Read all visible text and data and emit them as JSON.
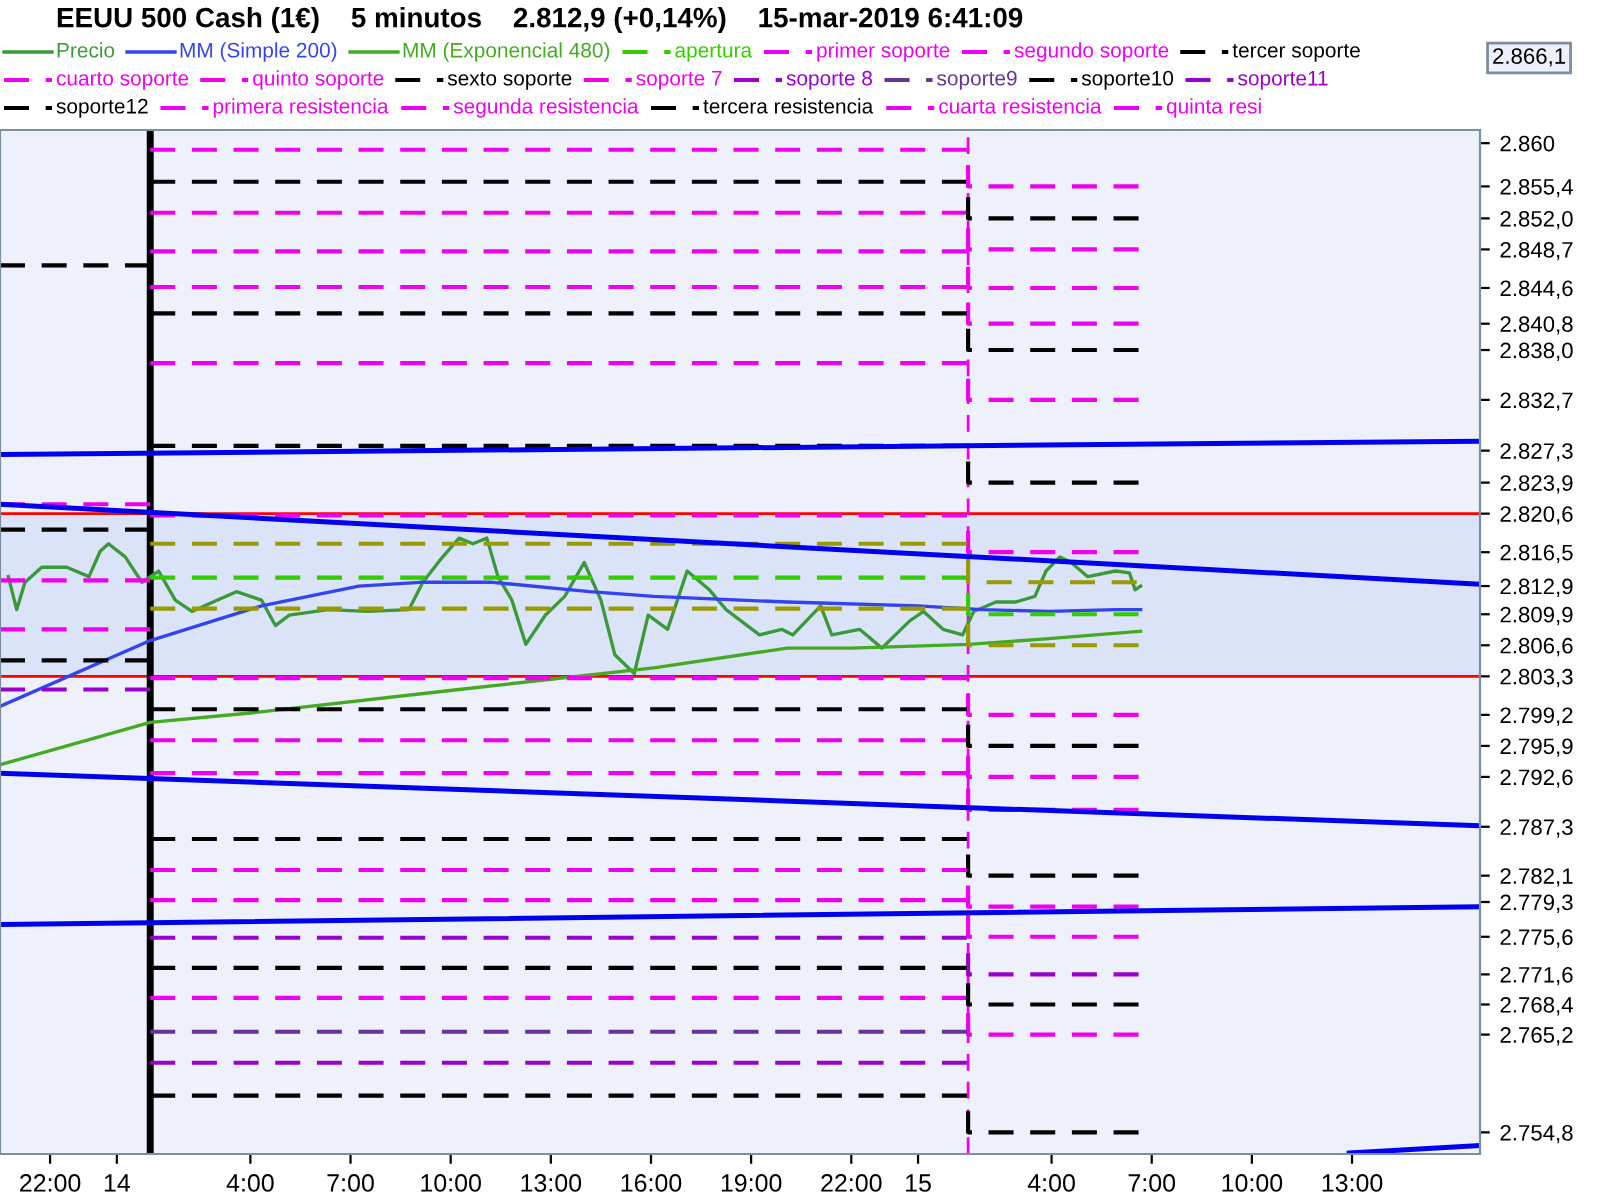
{
  "chart_data": {
    "type": "line",
    "title": "EEUU 500 Cash (1€)    5 minutos    2.812,9 (+0,14%)    15-mar-2019 6:41:09",
    "annotations": [
      "2.866,1"
    ],
    "xlim": [
      "2019-03-13T20:30",
      "2019-03-15T16:50"
    ],
    "xticks": [
      {
        "value": "2019-03-13T22:00",
        "label": "22:00"
      },
      {
        "value": "2019-03-14T00:00",
        "label": "14"
      },
      {
        "value": "2019-03-14T04:00",
        "label": "4:00"
      },
      {
        "value": "2019-03-14T07:00",
        "label": "7:00"
      },
      {
        "value": "2019-03-14T10:00",
        "label": "10:00"
      },
      {
        "value": "2019-03-14T13:00",
        "label": "13:00"
      },
      {
        "value": "2019-03-14T16:00",
        "label": "16:00"
      },
      {
        "value": "2019-03-14T19:00",
        "label": "19:00"
      },
      {
        "value": "2019-03-14T22:00",
        "label": "22:00"
      },
      {
        "value": "2019-03-15T00:00",
        "label": "15"
      },
      {
        "value": "2019-03-15T04:00",
        "label": "4:00"
      },
      {
        "value": "2019-03-15T07:00",
        "label": "7:00"
      },
      {
        "value": "2019-03-15T10:00",
        "label": "10:00"
      },
      {
        "value": "2019-03-15T13:00",
        "label": "13:00"
      }
    ],
    "ylim": [
      2752.5,
      2861.4
    ],
    "yticks": [
      {
        "value": 2860,
        "label": "2.860"
      },
      {
        "value": 2855.4,
        "label": "2.855,4"
      },
      {
        "value": 2852.0,
        "label": "2.852,0"
      },
      {
        "value": 2848.7,
        "label": "2.848,7"
      },
      {
        "value": 2844.6,
        "label": "2.844,6"
      },
      {
        "value": 2840.8,
        "label": "2.840,8"
      },
      {
        "value": 2838.0,
        "label": "2.838,0"
      },
      {
        "value": 2832.7,
        "label": "2.832,7"
      },
      {
        "value": 2827.3,
        "label": "2.827,3"
      },
      {
        "value": 2823.9,
        "label": "2.823,9"
      },
      {
        "value": 2820.6,
        "label": "2.820,6"
      },
      {
        "value": 2816.5,
        "label": "2.816,5"
      },
      {
        "value": 2812.9,
        "label": "2.812,9"
      },
      {
        "value": 2809.9,
        "label": "2.809,9"
      },
      {
        "value": 2806.6,
        "label": "2.806,6"
      },
      {
        "value": 2803.3,
        "label": "2.803,3"
      },
      {
        "value": 2799.2,
        "label": "2.799,2"
      },
      {
        "value": 2795.9,
        "label": "2.795,9"
      },
      {
        "value": 2792.6,
        "label": "2.792,6"
      },
      {
        "value": 2787.3,
        "label": "2.787,3"
      },
      {
        "value": 2782.1,
        "label": "2.782,1"
      },
      {
        "value": 2779.3,
        "label": "2.779,3"
      },
      {
        "value": 2775.6,
        "label": "2.775,6"
      },
      {
        "value": 2771.6,
        "label": "2.771,6"
      },
      {
        "value": 2768.4,
        "label": "2.768,4"
      },
      {
        "value": 2765.2,
        "label": "2.765,2"
      },
      {
        "value": 2754.8,
        "label": "2.754,8"
      }
    ],
    "grid": false,
    "legend": "top",
    "bands": [
      {
        "axis": "y",
        "from": 2803.3,
        "to": 2820.6,
        "color": "#dbe3f8"
      }
    ],
    "ref_lines": [
      {
        "axis": "y",
        "value": 2820.6,
        "color": "#ff0000",
        "line_style": "solid"
      },
      {
        "axis": "y",
        "value": 2803.3,
        "color": "#ff0000",
        "line_style": "solid"
      },
      {
        "axis": "x",
        "value": "2019-03-14T01:00",
        "color": "#000000",
        "line_style": "solid"
      },
      {
        "axis": "x",
        "value": "2019-03-15T01:30",
        "color": "#ee00ee",
        "line_style": "dashed"
      }
    ],
    "series": [
      {
        "name": "Precio",
        "color": "#3a9a3a",
        "line_style": "solid",
        "x": [
          "2019-03-13T20:45",
          "2019-03-13T21:00",
          "2019-03-13T21:15",
          "2019-03-13T21:45",
          "2019-03-13T22:30",
          "2019-03-13T23:10",
          "2019-03-13T23:30",
          "2019-03-13T23:45",
          "2019-03-14T00:15",
          "2019-03-14T00:45",
          "2019-03-14T01:15",
          "2019-03-14T01:45",
          "2019-03-14T02:15",
          "2019-03-14T03:00",
          "2019-03-14T03:35",
          "2019-03-14T04:20",
          "2019-03-14T04:45",
          "2019-03-14T05:10",
          "2019-03-14T06:20",
          "2019-03-14T07:30",
          "2019-03-14T08:45",
          "2019-03-14T09:10",
          "2019-03-14T09:40",
          "2019-03-14T10:15",
          "2019-03-14T10:40",
          "2019-03-14T11:05",
          "2019-03-14T11:25",
          "2019-03-14T11:50",
          "2019-03-14T12:15",
          "2019-03-14T12:50",
          "2019-03-14T13:25",
          "2019-03-14T14:00",
          "2019-03-14T14:30",
          "2019-03-14T14:55",
          "2019-03-14T15:30",
          "2019-03-14T15:55",
          "2019-03-14T16:30",
          "2019-03-14T17:05",
          "2019-03-14T17:45",
          "2019-03-14T18:15",
          "2019-03-14T19:15",
          "2019-03-14T19:55",
          "2019-03-14T20:15",
          "2019-03-14T21:05",
          "2019-03-14T21:25",
          "2019-03-14T22:15",
          "2019-03-14T22:55",
          "2019-03-14T23:45",
          "2019-03-15T00:10",
          "2019-03-15T00:45",
          "2019-03-15T01:20",
          "2019-03-15T01:40",
          "2019-03-15T02:20",
          "2019-03-15T02:55",
          "2019-03-15T03:30",
          "2019-03-15T03:50",
          "2019-03-15T04:15",
          "2019-03-15T04:35",
          "2019-03-15T05:05",
          "2019-03-15T05:55",
          "2019-03-15T06:20",
          "2019-03-15T06:30",
          "2019-03-15T06:40"
        ],
        "values": [
          2813.9,
          2810.4,
          2813.3,
          2814.9,
          2814.9,
          2813.9,
          2816.6,
          2817.4,
          2816.0,
          2813.3,
          2814.5,
          2811.4,
          2810.2,
          2811.4,
          2812.3,
          2811.4,
          2808.7,
          2809.8,
          2810.4,
          2810.2,
          2810.4,
          2813.3,
          2815.6,
          2818.0,
          2817.4,
          2818.0,
          2813.9,
          2811.4,
          2806.7,
          2809.8,
          2811.8,
          2815.4,
          2811.4,
          2805.6,
          2803.6,
          2809.8,
          2808.3,
          2814.5,
          2812.5,
          2810.4,
          2807.7,
          2808.3,
          2807.7,
          2810.8,
          2807.7,
          2808.3,
          2806.3,
          2809.2,
          2810.2,
          2808.3,
          2807.7,
          2810.2,
          2811.2,
          2811.2,
          2811.8,
          2814.5,
          2816.0,
          2815.4,
          2813.9,
          2814.5,
          2814.3,
          2812.5,
          2812.9
        ]
      },
      {
        "name": "MM (Simple 200)",
        "color": "#3344ee",
        "line_style": "solid",
        "x": [
          "2019-03-13T20:30",
          "2019-03-14T01:00",
          "2019-03-14T04:20",
          "2019-03-14T07:15",
          "2019-03-14T09:05",
          "2019-03-14T11:15",
          "2019-03-14T14:10",
          "2019-03-14T16:05",
          "2019-03-14T20:05",
          "2019-03-15T00:00",
          "2019-03-15T01:55",
          "2019-03-15T03:55",
          "2019-03-15T05:55",
          "2019-03-15T06:40"
        ],
        "values": [
          2800.1,
          2807.1,
          2810.8,
          2812.9,
          2813.3,
          2813.3,
          2812.3,
          2811.8,
          2811.2,
          2810.8,
          2810.4,
          2810.2,
          2810.4,
          2810.4
        ]
      },
      {
        "name": "MM (Exponencial 480)",
        "color": "#44aa22",
        "line_style": "solid",
        "x": [
          "2019-03-13T20:30",
          "2019-03-14T01:00",
          "2019-03-14T04:00",
          "2019-03-14T10:15",
          "2019-03-14T16:05",
          "2019-03-14T20:05",
          "2019-03-14T22:00",
          "2019-03-15T01:30",
          "2019-03-15T03:55",
          "2019-03-15T06:40"
        ],
        "values": [
          2793.9,
          2798.4,
          2799.4,
          2801.9,
          2804.2,
          2806.3,
          2806.3,
          2806.7,
          2807.3,
          2808.1
        ]
      },
      {
        "name": "apertura",
        "type": "step",
        "color": "#33cc00",
        "line_style": "dashed",
        "x": [
          "2019-03-14T01:00",
          "2019-03-15T01:30",
          "2019-03-15T06:45"
        ],
        "values": [
          2813.8,
          2809.9,
          2809.9
        ]
      },
      {
        "name": "primer soporte",
        "type": "step",
        "color": "#ee00ee",
        "line_style": "dashed",
        "x": [
          "2019-03-14T01:00",
          "2019-03-15T01:30",
          "2019-03-15T06:45"
        ],
        "values": [
          2803.1,
          2799.2,
          2799.2
        ]
      },
      {
        "name": "segundo soporte",
        "type": "step",
        "color": "#ee00ee",
        "line_style": "dashed",
        "x": [
          "2019-03-14T01:00",
          "2019-03-15T01:30",
          "2019-03-15T06:45"
        ],
        "values": [
          2796.5,
          2792.6,
          2792.6
        ]
      },
      {
        "name": "tercer soporte",
        "type": "step",
        "color": "#000000",
        "line_style": "dashed",
        "x": [
          "2019-03-14T01:00",
          "2019-03-15T01:30",
          "2019-03-15T06:45"
        ],
        "values": [
          2799.8,
          2795.9,
          2795.9
        ]
      },
      {
        "name": "cuarto soporte",
        "type": "step",
        "color": "#ee00ee",
        "line_style": "dashed",
        "x": [
          "2019-03-14T01:00",
          "2019-03-15T01:30",
          "2019-03-15T06:45"
        ],
        "values": [
          2779.5,
          2775.6,
          2775.6
        ]
      },
      {
        "name": "quinto soporte",
        "type": "step",
        "color": "#ee00ee",
        "line_style": "dashed",
        "x": [
          "2019-03-14T01:00",
          "2019-03-15T01:30",
          "2019-03-15T06:45"
        ],
        "values": [
          2793.0,
          2789.1,
          2789.1
        ]
      },
      {
        "name": "sexto soporte",
        "type": "step",
        "color": "#000000",
        "line_style": "dashed",
        "x": [
          "2019-03-14T01:00",
          "2019-03-15T01:30",
          "2019-03-15T06:45"
        ],
        "values": [
          2786.0,
          2782.1,
          2782.1
        ]
      },
      {
        "name": "soporte 7",
        "type": "step",
        "color": "#ee00ee",
        "line_style": "dashed",
        "x": [
          "2019-03-14T01:00",
          "2019-03-15T01:30",
          "2019-03-15T06:45"
        ],
        "values": [
          2769.1,
          2765.2,
          2765.2
        ]
      },
      {
        "name": "soporte 8",
        "type": "step",
        "color": "#9900cc",
        "line_style": "dashed",
        "x": [
          "2019-03-14T01:00",
          "2019-03-15T01:30",
          "2019-03-15T06:45"
        ],
        "values": [
          2775.5,
          2771.6,
          2771.6
        ]
      },
      {
        "name": "soporte9",
        "type": "step",
        "color": "#663399",
        "line_style": "dashed",
        "x": [
          "2019-03-14T01:00",
          "2019-03-15T01:30"
        ],
        "values": [
          2765.5,
          2765.5
        ]
      },
      {
        "name": "soporte10",
        "type": "step",
        "color": "#000000",
        "line_style": "dashed",
        "x": [
          "2019-03-14T01:00",
          "2019-03-15T01:30",
          "2019-03-15T06:45"
        ],
        "values": [
          2772.3,
          2768.4,
          2768.4
        ]
      },
      {
        "name": "soporte11",
        "type": "step",
        "color": "#9900cc",
        "line_style": "dashed",
        "x": [
          "2019-03-14T01:00",
          "2019-03-15T01:30"
        ],
        "values": [
          2762.2,
          2762.2
        ]
      },
      {
        "name": "soporte12",
        "type": "step",
        "color": "#000000",
        "line_style": "dashed",
        "x": [
          "2019-03-14T01:00",
          "2019-03-15T01:30",
          "2019-03-15T06:45"
        ],
        "values": [
          2758.7,
          2754.8,
          2754.8
        ]
      },
      {
        "name": "primera resistencia",
        "type": "step",
        "color": "#ee00ee",
        "line_style": "dashed",
        "x": [
          "2019-03-14T01:00",
          "2019-03-15T01:30",
          "2019-03-15T06:45"
        ],
        "values": [
          2820.4,
          2816.5,
          2816.5
        ]
      },
      {
        "name": "segunda resistencia",
        "type": "step",
        "color": "#ee00ee",
        "line_style": "dashed",
        "x": [
          "2019-03-14T01:00",
          "2019-03-15T01:30",
          "2019-03-15T06:45"
        ],
        "values": [
          2836.6,
          2832.7,
          2832.7
        ]
      },
      {
        "name": "tercera resistencia",
        "type": "step",
        "color": "#000000",
        "line_style": "dashed",
        "x": [
          "2019-03-14T01:00",
          "2019-03-15T01:30",
          "2019-03-15T06:45"
        ],
        "values": [
          2827.8,
          2823.9,
          2823.9
        ]
      },
      {
        "name": "cuarta resistencia",
        "type": "step",
        "color": "#ee00ee",
        "line_style": "dashed",
        "x": [
          "2019-03-14T01:00",
          "2019-03-15T01:30",
          "2019-03-15T06:45"
        ],
        "values": [
          2844.7,
          2840.8,
          2840.8
        ]
      },
      {
        "name": "quinta resi",
        "type": "step",
        "color": "#ee00ee",
        "line_style": "dashed",
        "x": [
          "2019-03-14T01:00",
          "2019-03-15T01:30",
          "2019-03-15T06:45"
        ],
        "values": [
          2848.5,
          2844.6,
          2844.6
        ]
      },
      {
        "type": "step",
        "color": "#000000",
        "line_style": "dashed",
        "x": [
          "2019-03-14T01:00",
          "2019-03-15T01:30",
          "2019-03-15T06:45"
        ],
        "values": [
          2841.9,
          2838.0,
          2838.0
        ]
      },
      {
        "type": "step",
        "color": "#ee00ee",
        "line_style": "dashed",
        "x": [
          "2019-03-14T01:00",
          "2019-03-15T01:30",
          "2019-03-15T06:45"
        ],
        "values": [
          2852.6,
          2848.7,
          2848.7
        ]
      },
      {
        "type": "step",
        "color": "#000000",
        "line_style": "dashed",
        "x": [
          "2019-03-14T01:00",
          "2019-03-15T01:30",
          "2019-03-15T06:45"
        ],
        "values": [
          2855.9,
          2852.0,
          2852.0
        ]
      },
      {
        "type": "step",
        "color": "#ee00ee",
        "line_style": "dashed",
        "x": [
          "2019-03-14T01:00",
          "2019-03-15T01:30",
          "2019-03-15T06:45"
        ],
        "values": [
          2859.3,
          2855.4,
          2855.4
        ]
      },
      {
        "type": "step",
        "color": "#999900",
        "line_style": "dashed",
        "x": [
          "2019-03-14T01:00",
          "2019-03-15T01:30",
          "2019-03-15T06:45"
        ],
        "values": [
          2810.5,
          2806.6,
          2806.6
        ]
      },
      {
        "type": "step",
        "color": "#999900",
        "line_style": "dashed",
        "x": [
          "2019-03-14T01:00",
          "2019-03-15T01:30",
          "2019-03-15T06:45"
        ],
        "values": [
          2817.4,
          2813.3,
          2813.3
        ]
      },
      {
        "type": "step",
        "color": "#ee00ee",
        "line_style": "dashed",
        "x": [
          "2019-03-14T01:00",
          "2019-03-15T01:30",
          "2019-03-15T06:45"
        ],
        "values": [
          2782.7,
          2778.8,
          2778.8
        ]
      },
      {
        "type": "step",
        "color": "#000000",
        "line_style": "dashed",
        "x": [
          "2019-03-13T20:30",
          "2019-03-14T01:00"
        ],
        "values": [
          2847.0,
          2847.0
        ]
      },
      {
        "type": "step",
        "color": "#000000",
        "line_style": "dashed",
        "x": [
          "2019-03-13T20:30",
          "2019-03-14T01:00"
        ],
        "values": [
          2818.9,
          2818.9
        ]
      },
      {
        "type": "step",
        "color": "#000000",
        "line_style": "dashed",
        "x": [
          "2019-03-13T20:30",
          "2019-03-14T01:00"
        ],
        "values": [
          2805.0,
          2805.0
        ]
      },
      {
        "type": "step",
        "color": "#ee00ee",
        "line_style": "dashed",
        "x": [
          "2019-03-13T20:30",
          "2019-03-14T01:00"
        ],
        "values": [
          2821.6,
          2821.6
        ]
      },
      {
        "type": "step",
        "color": "#ee00ee",
        "line_style": "dashed",
        "x": [
          "2019-03-13T20:30",
          "2019-03-14T01:00"
        ],
        "values": [
          2813.5,
          2813.5
        ]
      },
      {
        "type": "step",
        "color": "#ee00ee",
        "line_style": "dashed",
        "x": [
          "2019-03-13T20:30",
          "2019-03-14T01:00"
        ],
        "values": [
          2808.3,
          2808.3
        ]
      },
      {
        "type": "step",
        "color": "#9900cc",
        "line_style": "dashed",
        "x": [
          "2019-03-13T20:30",
          "2019-03-14T01:00"
        ],
        "values": [
          2801.9,
          2801.9
        ]
      },
      {
        "color": "#0000ee",
        "line_style": "solid",
        "x": [
          "2019-03-13T20:30",
          "2019-03-15T16:50"
        ],
        "values": [
          2826.9,
          2828.3
        ]
      },
      {
        "color": "#0000ee",
        "line_style": "solid",
        "x": [
          "2019-03-13T20:30",
          "2019-03-15T16:50"
        ],
        "values": [
          2821.6,
          2813.1
        ]
      },
      {
        "color": "#0000ee",
        "line_style": "solid",
        "x": [
          "2019-03-13T20:30",
          "2019-03-15T16:50"
        ],
        "values": [
          2793.0,
          2787.4
        ]
      },
      {
        "color": "#0000ee",
        "line_style": "solid",
        "x": [
          "2019-03-13T20:30",
          "2019-03-15T16:50"
        ],
        "values": [
          2776.9,
          2778.8
        ]
      },
      {
        "color": "#0000ee",
        "line_style": "solid",
        "x": [
          "2019-03-15T12:55",
          "2019-03-15T16:50"
        ],
        "values": [
          2752.6,
          2753.4
        ]
      }
    ]
  }
}
